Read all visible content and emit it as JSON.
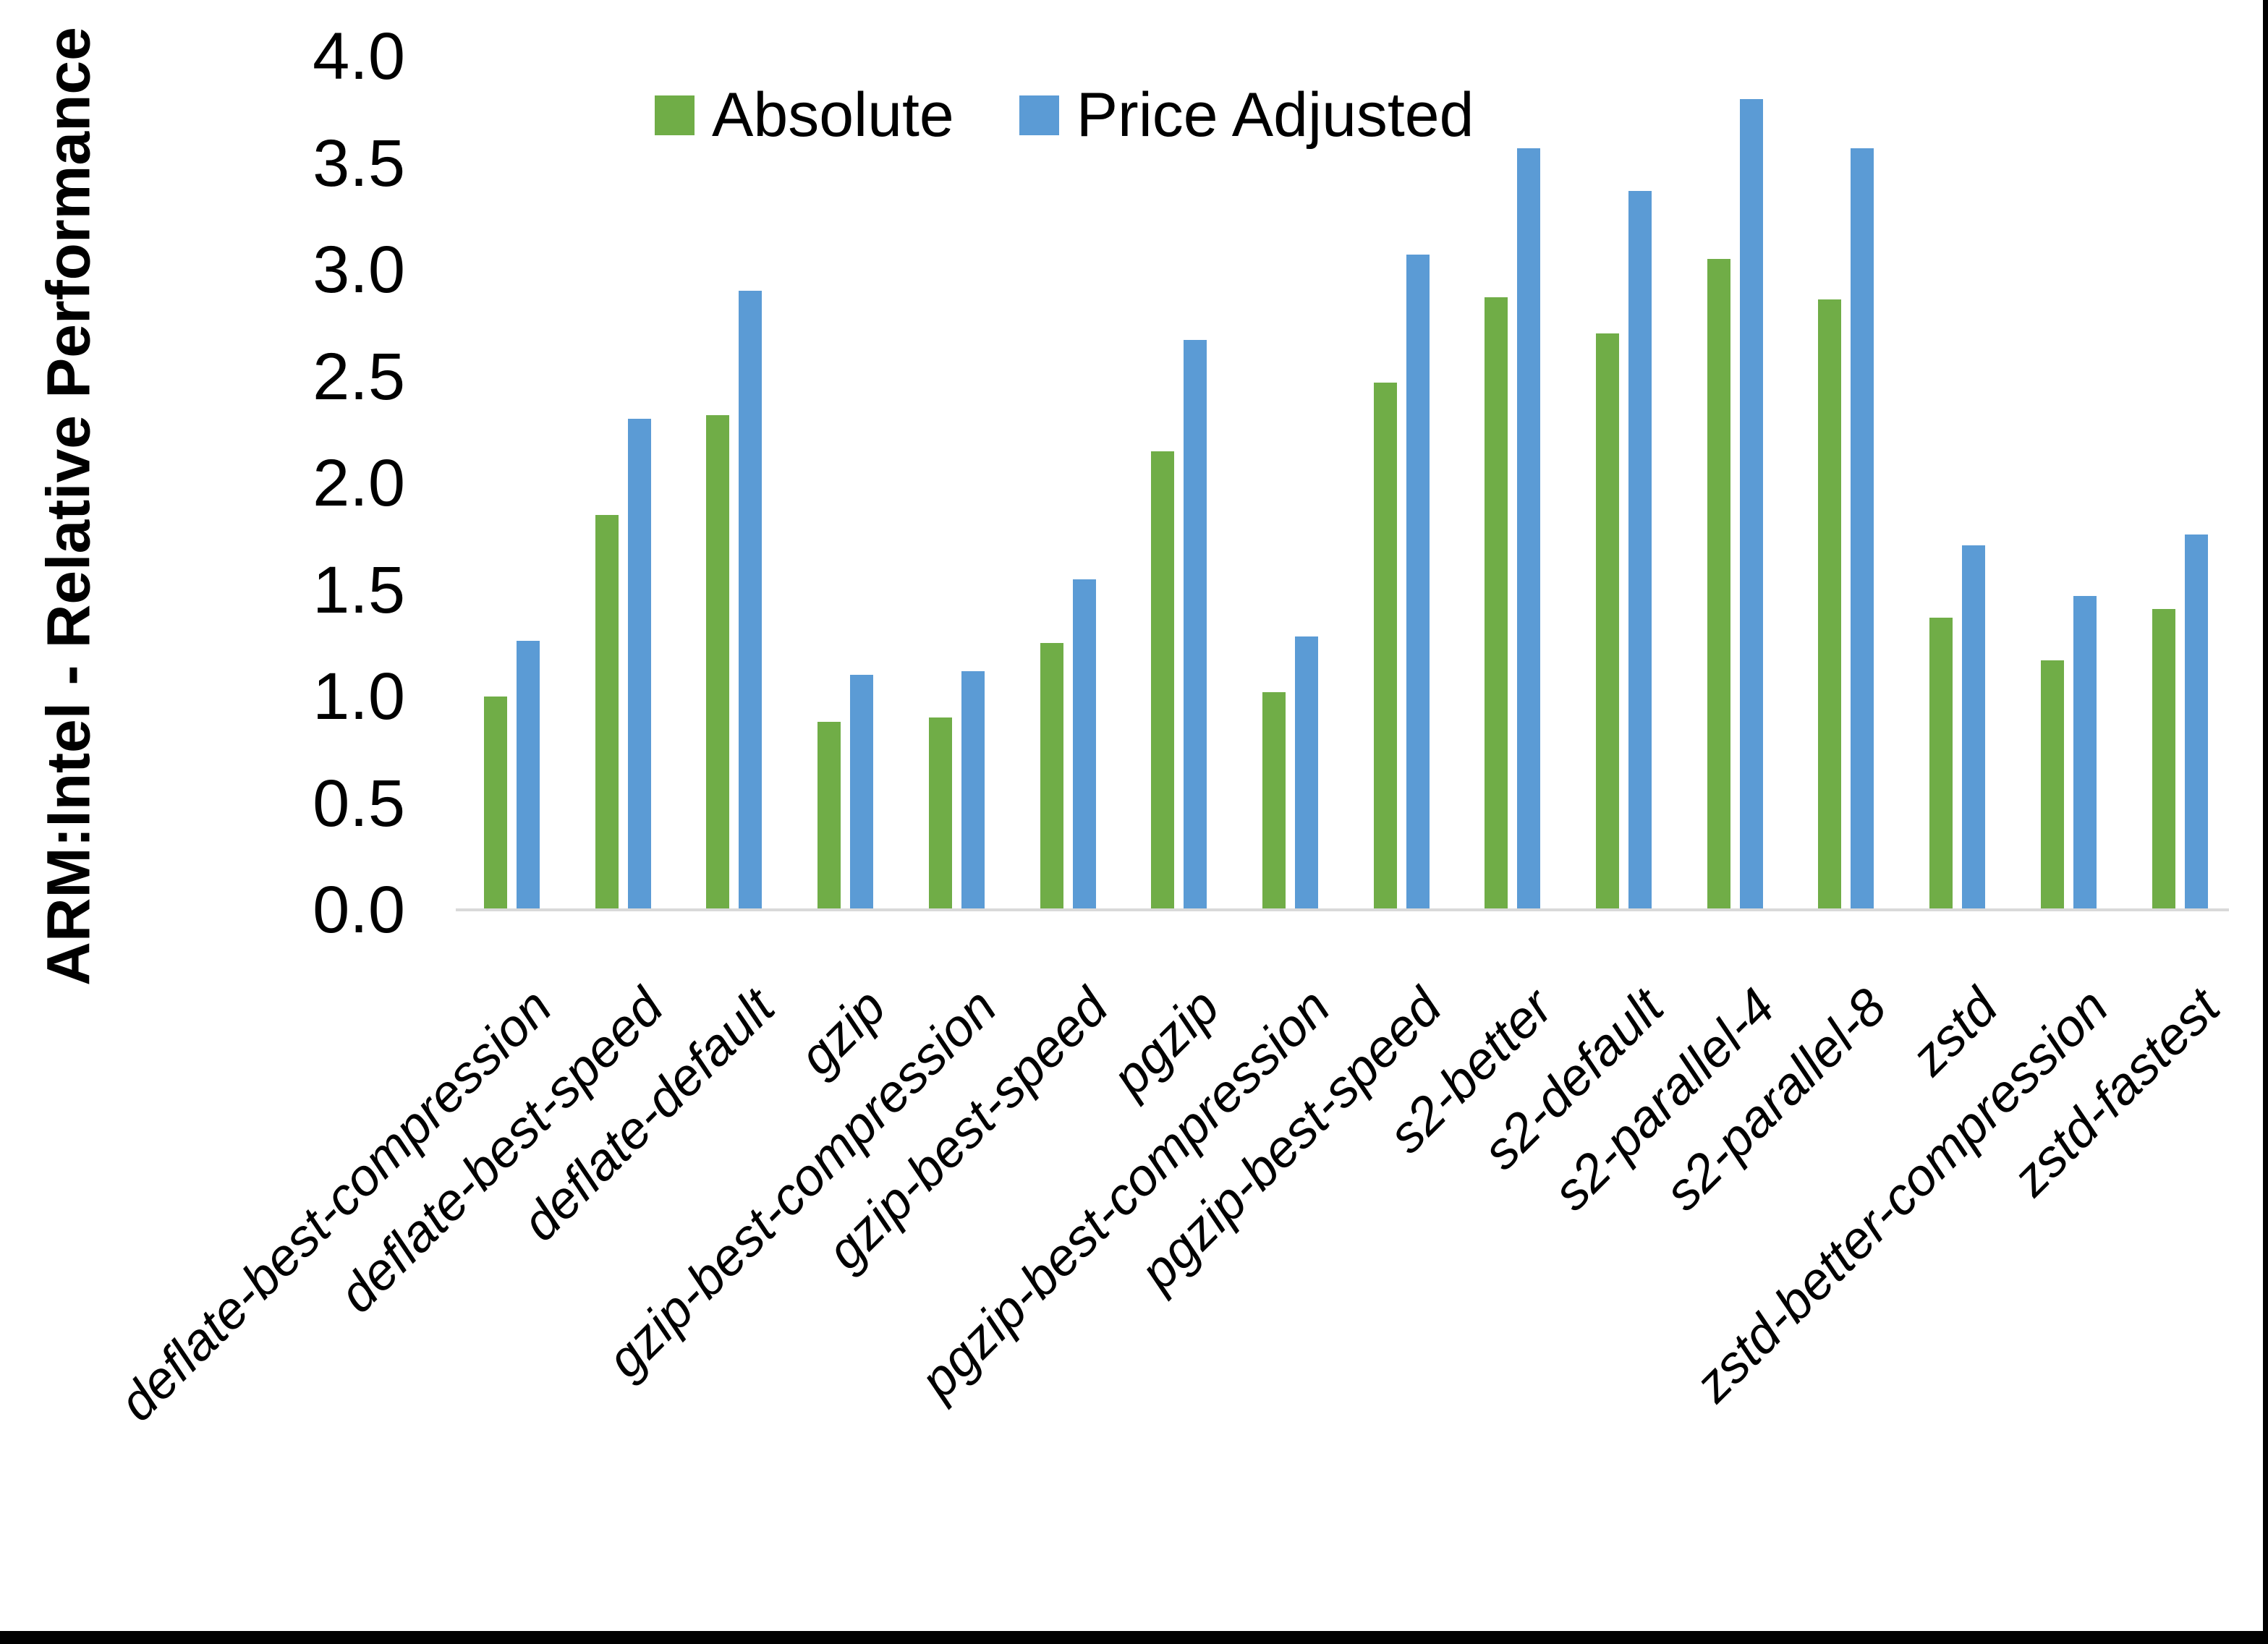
{
  "chart_data": {
    "type": "bar",
    "title": "",
    "ylabel": "ARM:Intel - Relative Performance",
    "xlabel": "",
    "ylim": [
      0.0,
      4.0
    ],
    "ytick_labels": [
      "0.0",
      "0.5",
      "1.0",
      "1.5",
      "2.0",
      "2.5",
      "3.0",
      "3.5",
      "4.0"
    ],
    "grid": false,
    "legend_position": "top",
    "axis_line_color": "#D9D9D9",
    "background_color": "#FFFFFF",
    "categories": [
      "deflate-best-compression",
      "deflate-best-speed",
      "deflate-default",
      "gzip",
      "gzip-best-compression",
      "gzip-best-speed",
      "pgzip",
      "pgzip-best-compression",
      "pgzip-best-speed",
      "s2-better",
      "s2-default",
      "s2-parallel-4",
      "s2-parallel-8",
      "zstd",
      "zstd-better-compression",
      "zstd-fastest"
    ],
    "series": [
      {
        "name": "Absolute",
        "color": "#70AD47",
        "values": [
          1.0,
          1.85,
          2.32,
          0.88,
          0.9,
          1.25,
          2.15,
          1.02,
          2.47,
          2.87,
          2.7,
          3.05,
          2.86,
          1.37,
          1.17,
          1.41
        ]
      },
      {
        "name": "Price Adjusted",
        "color": "#5B9BD5",
        "values": [
          1.26,
          2.3,
          2.9,
          1.1,
          1.12,
          1.55,
          2.67,
          1.28,
          3.07,
          3.57,
          3.37,
          3.8,
          3.57,
          1.71,
          1.47,
          1.76
        ]
      }
    ]
  }
}
